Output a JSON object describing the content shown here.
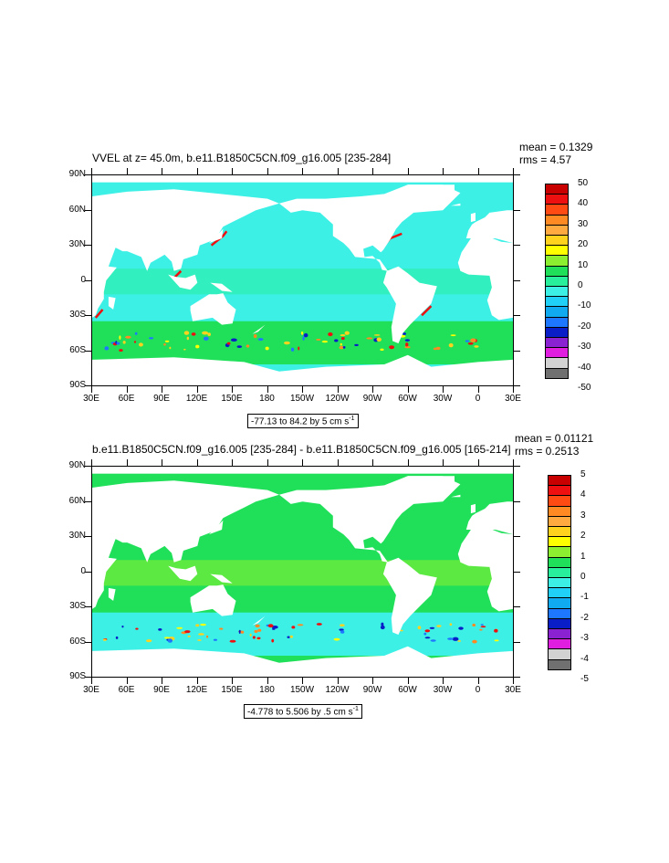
{
  "chart_data": [
    {
      "type": "heatmap",
      "subtype": "filled-contour-map",
      "title": "VVEL at z=  45.0m, b.e11.B1850C5CN.f09_g16.005 [235-284]",
      "stats": {
        "mean": "mean = 0.1329",
        "rms": "rms = 4.57"
      },
      "lat_ticks": [
        "90N",
        "60N",
        "30N",
        "0",
        "30S",
        "60S",
        "90S"
      ],
      "lon_ticks": [
        "30E",
        "60E",
        "90E",
        "120E",
        "150E",
        "180",
        "150W",
        "120W",
        "90W",
        "60W",
        "30W",
        "0",
        "30E"
      ],
      "range_text": "-77.13 to 84.2 by 5 cm s",
      "range_unit_exp": "-1",
      "colorbar_labels": [
        "50",
        "40",
        "30",
        "20",
        "10",
        "0",
        "-10",
        "-20",
        "-30",
        "-40",
        "-50"
      ],
      "colorbar_colors": [
        "#c80000",
        "#ee1010",
        "#ff4a14",
        "#ff8a24",
        "#ffaa40",
        "#ffd21e",
        "#ffff00",
        "#8cf030",
        "#20e05a",
        "#28ef9c",
        "#3cf0e6",
        "#20d0f6",
        "#10aaf0",
        "#1e78ff",
        "#0a1ec8",
        "#8a22d2",
        "#e01ee0",
        "#d2d2d2",
        "#707070"
      ],
      "ocean_dominant_color": "#3cf0e6",
      "ylim": [
        -90,
        90
      ]
    },
    {
      "type": "heatmap",
      "subtype": "filled-contour-map",
      "title": "b.e11.B1850C5CN.f09_g16.005 [235-284] - b.e11.B1850C5CN.f09_g16.005 [165-214]",
      "stats": {
        "mean": "mean = 0.01121",
        "rms": "rms = 0.2513"
      },
      "lat_ticks": [
        "90N",
        "60N",
        "30N",
        "0",
        "30S",
        "60S",
        "90S"
      ],
      "lon_ticks": [
        "30E",
        "60E",
        "90E",
        "120E",
        "150E",
        "180",
        "150W",
        "120W",
        "90W",
        "60W",
        "30W",
        "0",
        "30E"
      ],
      "range_text": "-4.778 to 5.506 by .5 cm s",
      "range_unit_exp": "-1",
      "colorbar_labels": [
        "5",
        "4",
        "3",
        "2",
        "1",
        "0",
        "-1",
        "-2",
        "-3",
        "-4",
        "-5"
      ],
      "colorbar_colors": [
        "#c80000",
        "#ee1010",
        "#ff4a14",
        "#ff8a24",
        "#ffaa40",
        "#ffd21e",
        "#ffff00",
        "#8cf030",
        "#20e05a",
        "#28ef9c",
        "#3cf0e6",
        "#20d0f6",
        "#10aaf0",
        "#1e78ff",
        "#0a1ec8",
        "#8a22d2",
        "#e01ee0",
        "#d2d2d2",
        "#707070"
      ],
      "ocean_dominant_color": "#20e05a",
      "ylim": [
        -90,
        90
      ]
    }
  ]
}
